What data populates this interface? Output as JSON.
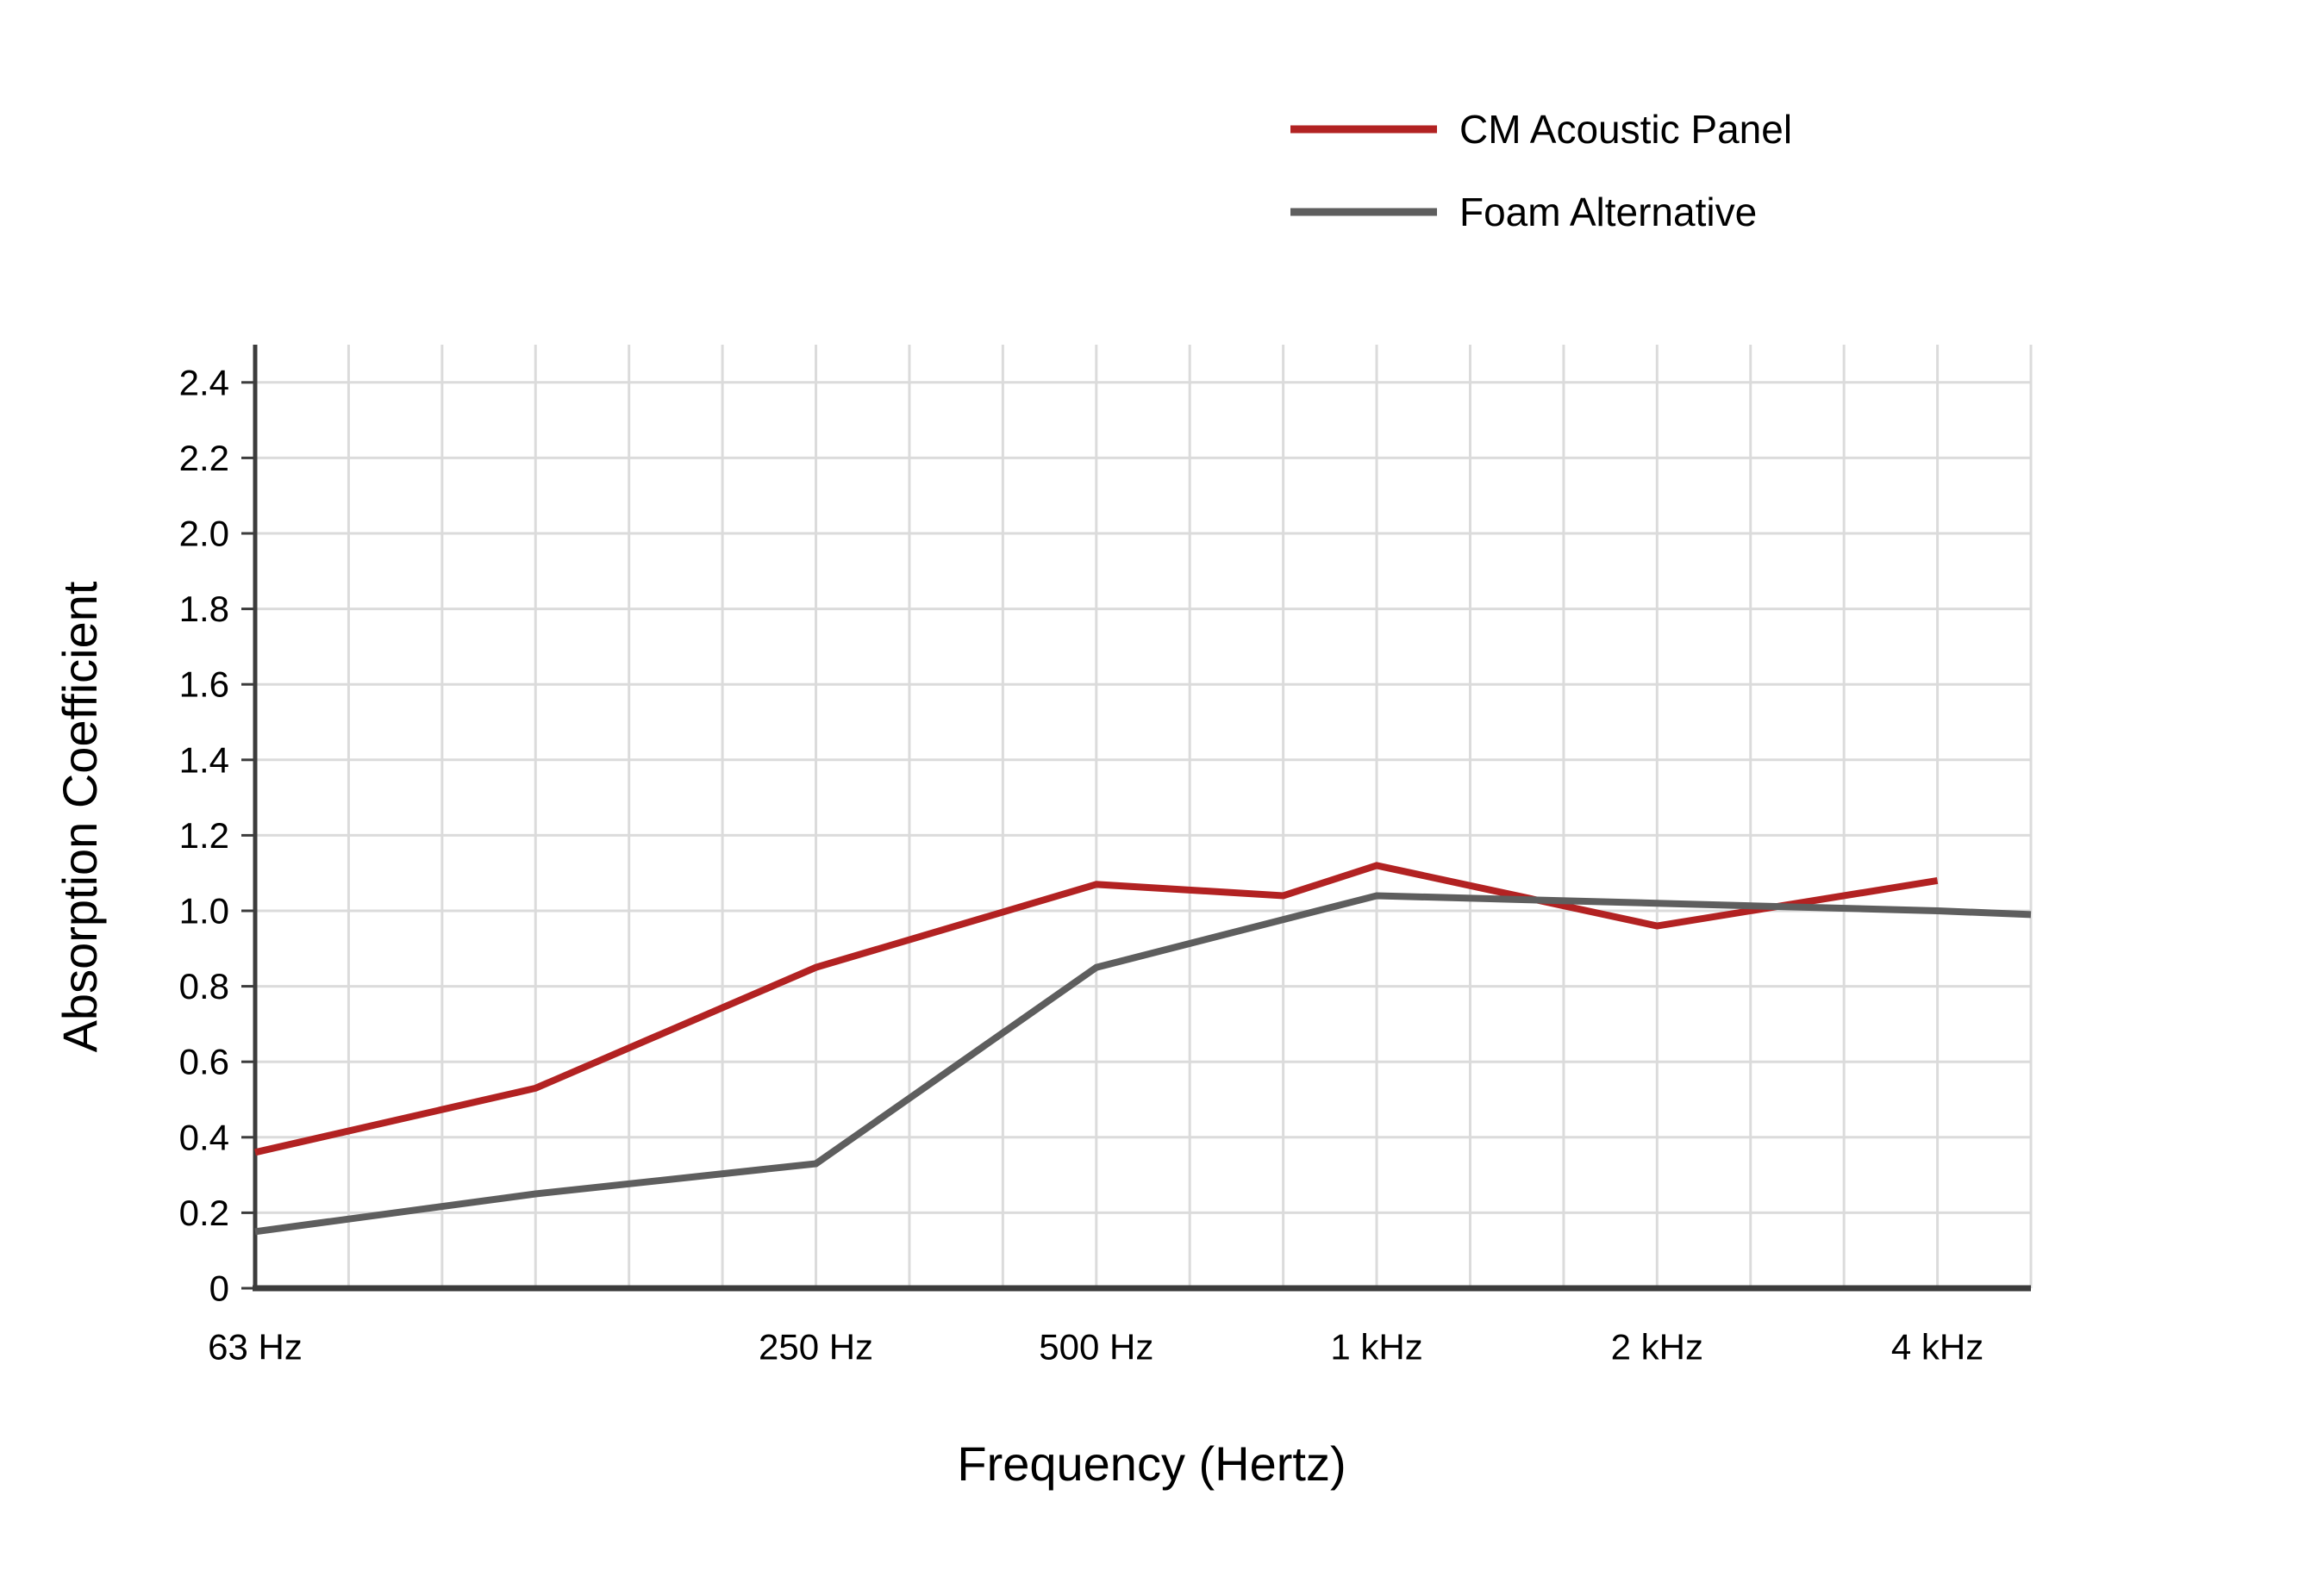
{
  "chart_data": {
    "type": "line",
    "title": "",
    "background": "#FFFFFF",
    "x_axis": {
      "label": "Frequency (Hertz)",
      "scale": "logarithmic-third-octave",
      "gridline_divisions": 19,
      "tick_labels": [
        {
          "label": "63 Hz",
          "grid_index": 0
        },
        {
          "label": "250 Hz",
          "grid_index": 6
        },
        {
          "label": "500 Hz",
          "grid_index": 9
        },
        {
          "label": "1 kHz",
          "grid_index": 12
        },
        {
          "label": "2 kHz",
          "grid_index": 15
        },
        {
          "label": "4 kHz",
          "grid_index": 18
        }
      ]
    },
    "y_axis": {
      "label": "Absorption Coefficient",
      "min": 0,
      "max": 2.5,
      "tick_step": 0.2,
      "tick_labels": [
        "0",
        "0.2",
        "0.4",
        "0.6",
        "0.8",
        "1.0",
        "1.2",
        "1.4",
        "1.6",
        "1.8",
        "2.0",
        "2.2",
        "2.4"
      ]
    },
    "grid": {
      "show": true,
      "color": "#DBDBDB"
    },
    "axis_color": "#3C3C3C",
    "legend": {
      "position": "top-right"
    },
    "series": [
      {
        "name": "CM Acoustic Panel",
        "color": "#B22222",
        "points": [
          {
            "frequency_hz": 63,
            "grid_index": 0,
            "value": 0.36
          },
          {
            "frequency_hz": 125,
            "grid_index": 3,
            "value": 0.53
          },
          {
            "frequency_hz": 250,
            "grid_index": 6,
            "value": 0.85
          },
          {
            "frequency_hz": 500,
            "grid_index": 9,
            "value": 1.07
          },
          {
            "frequency_hz": 800,
            "grid_index": 11,
            "value": 1.04
          },
          {
            "frequency_hz": 1000,
            "grid_index": 12,
            "value": 1.12
          },
          {
            "frequency_hz": 2000,
            "grid_index": 15,
            "value": 0.96
          },
          {
            "frequency_hz": 4000,
            "grid_index": 18,
            "value": 1.08
          }
        ]
      },
      {
        "name": "Foam Alternative",
        "color": "#5E5E5E",
        "points": [
          {
            "frequency_hz": 63,
            "grid_index": 0,
            "value": 0.15
          },
          {
            "frequency_hz": 125,
            "grid_index": 3,
            "value": 0.25
          },
          {
            "frequency_hz": 250,
            "grid_index": 6,
            "value": 0.33
          },
          {
            "frequency_hz": 500,
            "grid_index": 9,
            "value": 0.85
          },
          {
            "frequency_hz": 1000,
            "grid_index": 12,
            "value": 1.04
          },
          {
            "frequency_hz": 2000,
            "grid_index": 15,
            "value": 1.02
          },
          {
            "frequency_hz": 4000,
            "grid_index": 18,
            "value": 1.0
          },
          {
            "frequency_hz": 5000,
            "grid_index": 19,
            "value": 0.99
          }
        ]
      }
    ]
  }
}
